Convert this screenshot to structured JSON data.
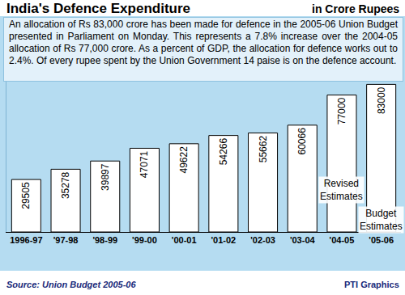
{
  "chart_data": {
    "type": "bar",
    "title": "India's Defence Expenditure",
    "subtitle": "in Crore Rupees",
    "description": "An allocation of Rs 83,000 crore has been made for defence in the 2005-06 Union Budget presented in Parliament on Monday. This represents a 7.8% increase over the 2004-05 allocation of Rs 77,000 crore. As a percent of GDP, the allocation for defence works out to 2.4%. Of every rupee spent by the Union Government 14 paise is on the defence account.",
    "categories": [
      "1996-97",
      "'97-98",
      "'98-99",
      "'99-00",
      "'00-01",
      "'01-02",
      "'02-03",
      "'03-04",
      "'04-05",
      "'05-06"
    ],
    "values": [
      29505,
      35278,
      39897,
      47071,
      49622,
      54266,
      55662,
      60066,
      77000,
      83000
    ],
    "color": "#ffffff",
    "ylim": [
      0,
      85000
    ],
    "tick_labels": "x",
    "data_labels": true,
    "grid": false,
    "annotations": [
      {
        "category": "'04-05",
        "text": "Revised Estimates"
      },
      {
        "category": "'05-06",
        "text": "Budget Estimates"
      }
    ],
    "source": "Source: Union Budget 2005-06",
    "credit": "PTI Graphics"
  }
}
